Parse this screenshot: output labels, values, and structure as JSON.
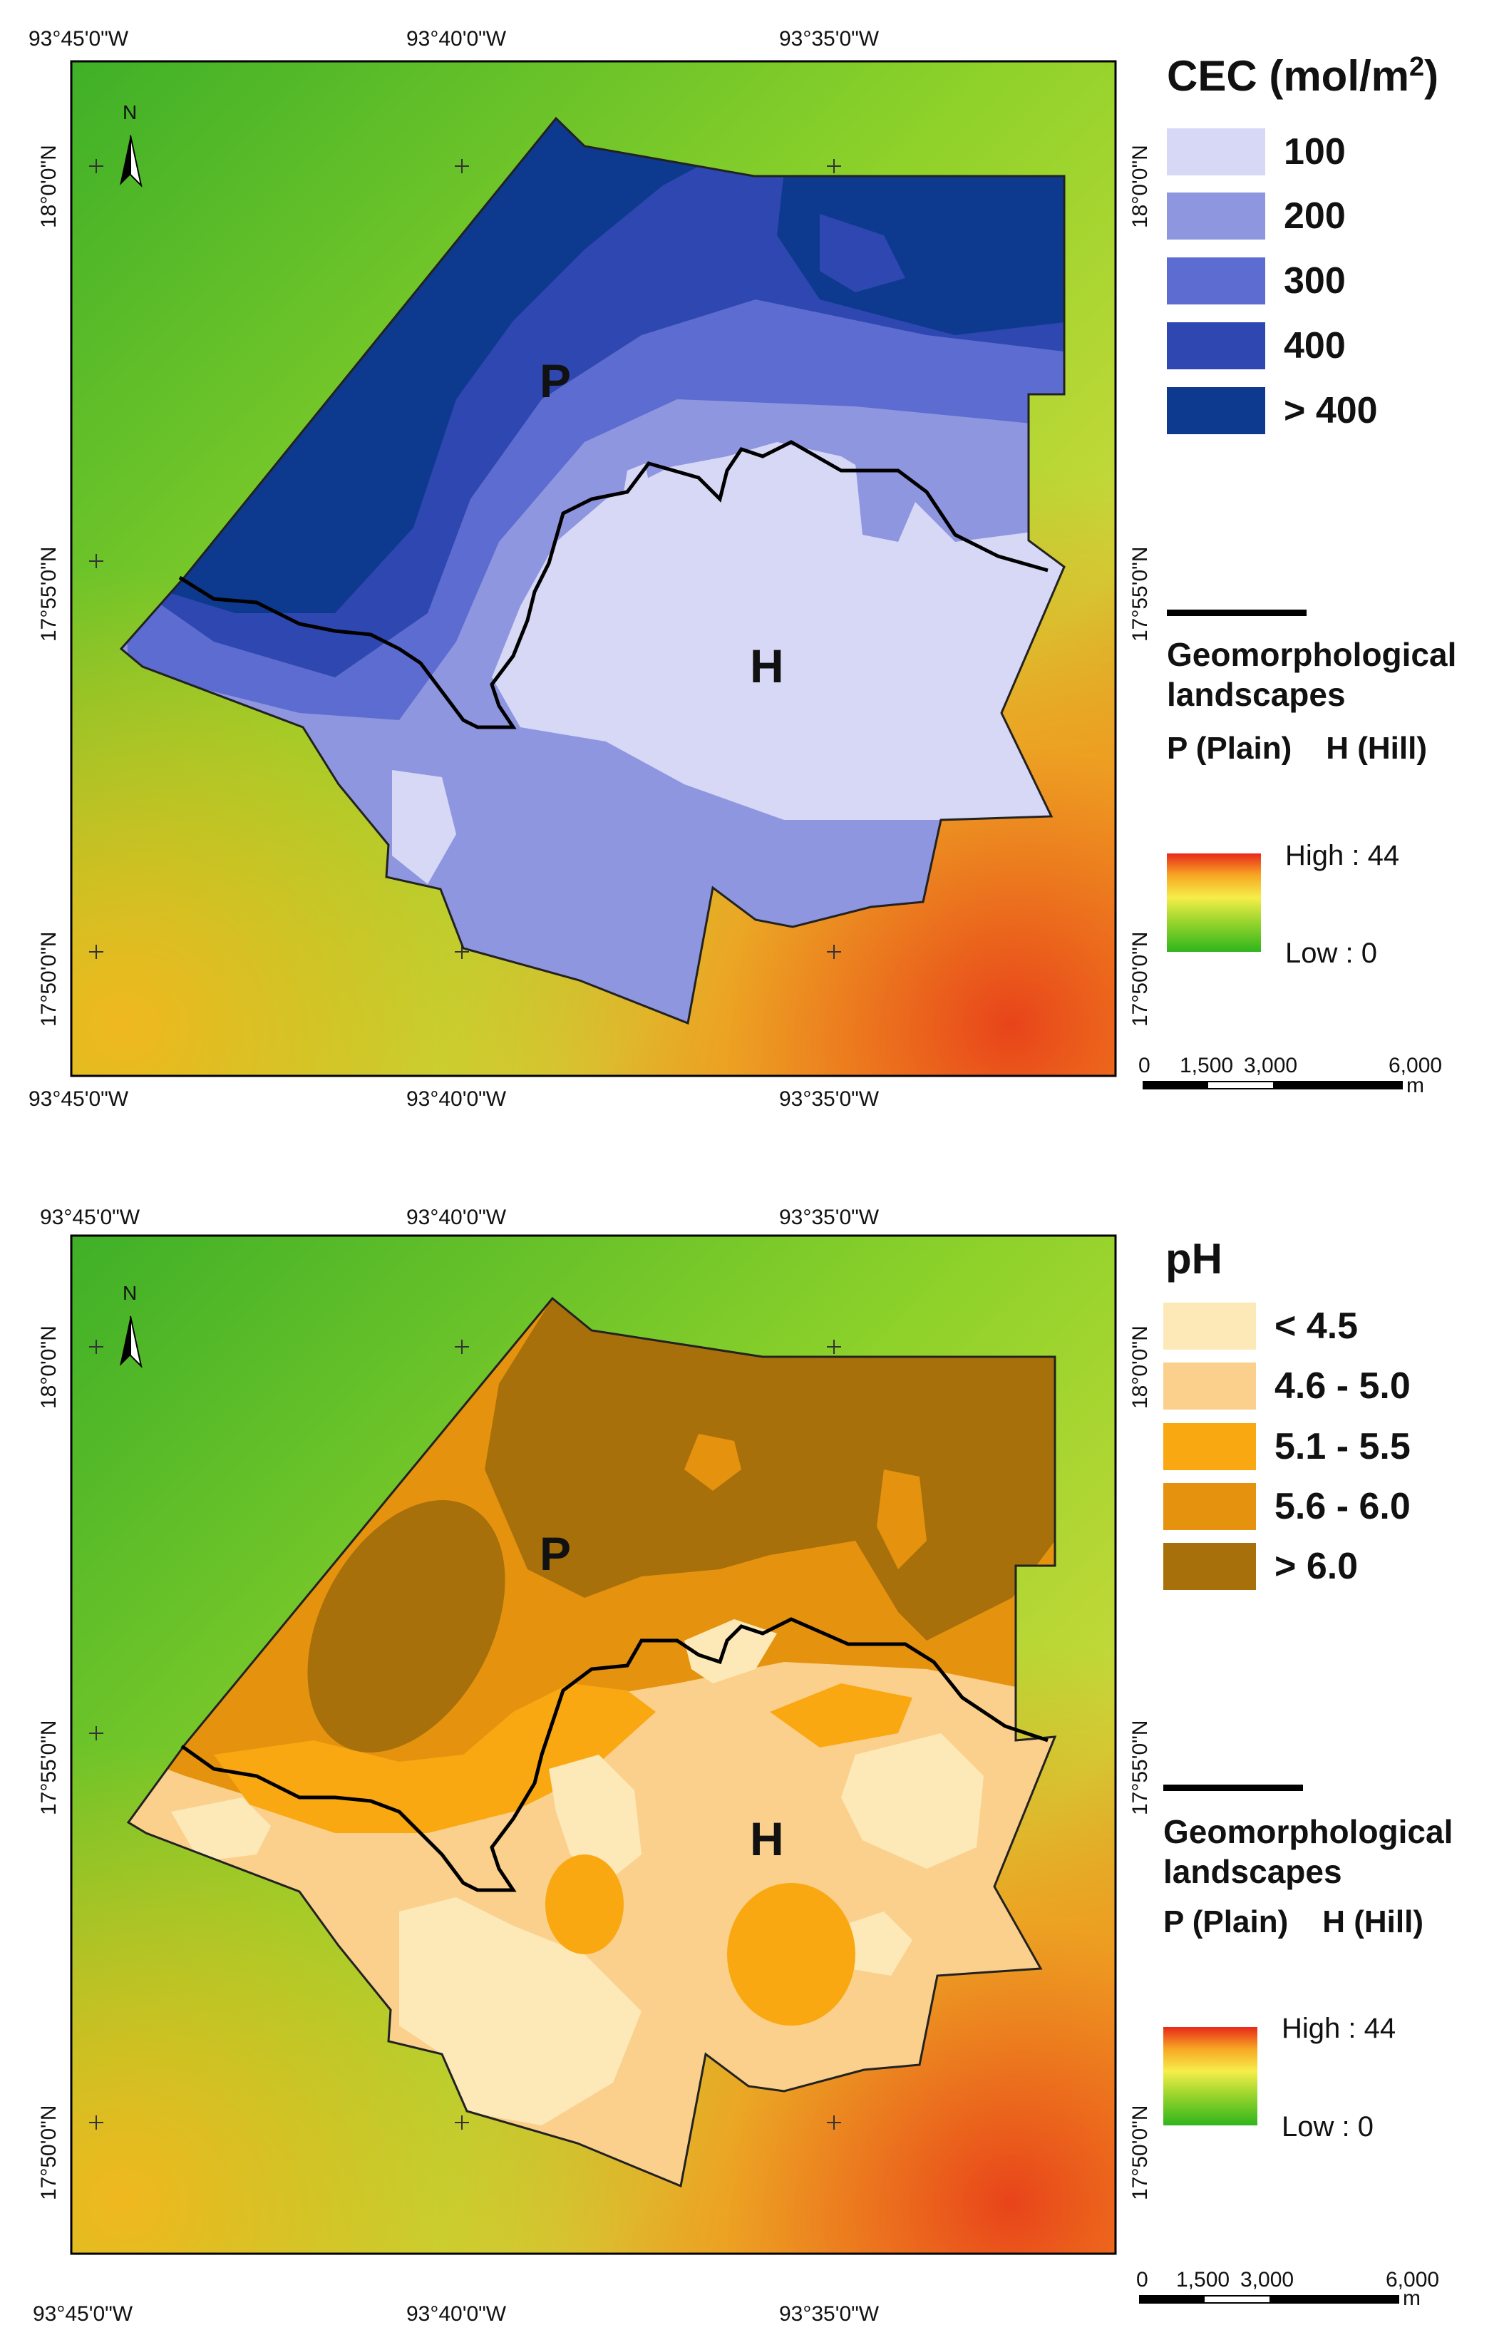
{
  "colors": {
    "cec_classes": [
      "#d6d8f5",
      "#8f96e0",
      "#5d6cd0",
      "#2f47b0",
      "#0d3a8e"
    ],
    "ph_classes": [
      "#fde9b8",
      "#fbd08c",
      "#f9a811",
      "#e5920f",
      "#a8700a"
    ],
    "boundary": "#000000",
    "dem_low": "#2fb51c",
    "dem_high": "#e8281a"
  },
  "panels": [
    {
      "id": "cec",
      "coords": {
        "top_lon": [
          "93°45'0\"W",
          "93°40'0\"W",
          "93°35'0\"W"
        ],
        "bottom_lon": [
          "93°45'0\"W",
          "93°40'0\"W",
          "93°35'0\"W"
        ],
        "left_lat": [
          "18°0'0\"N",
          "17°55'0\"N",
          "17°50'0\"N"
        ],
        "right_lat": [
          "18°0'0\"N",
          "17°55'0\"N",
          "17°50'0\"N"
        ]
      },
      "north_arrow": "N",
      "landscape_labels": {
        "plain": "P",
        "hill": "H"
      },
      "legend": {
        "title": "CEC (mol/m",
        "title_sup": "2",
        "title_end": ")",
        "classes": [
          "100",
          "200",
          "300",
          "400",
          "> 400"
        ]
      },
      "geo": {
        "title_line1": "Geomorphological",
        "title_line2": "landscapes",
        "plain": "P (Plain)",
        "hill": "H (Hill)"
      },
      "elevation": {
        "high": "High : 44",
        "low": "Low : 0"
      },
      "scale": {
        "ticks": [
          "0",
          "1,500",
          "3,000",
          "6,000"
        ],
        "unit": "m"
      }
    },
    {
      "id": "ph",
      "coords": {
        "top_lon": [
          "93°45'0\"W",
          "93°40'0\"W",
          "93°35'0\"W"
        ],
        "bottom_lon": [
          "93°45'0\"W",
          "93°40'0\"W",
          "93°35'0\"W"
        ],
        "left_lat": [
          "18°0'0\"N",
          "17°55'0\"N",
          "17°50'0\"N"
        ],
        "right_lat": [
          "18°0'0\"N",
          "17°55'0\"N",
          "17°50'0\"N"
        ]
      },
      "north_arrow": "N",
      "landscape_labels": {
        "plain": "P",
        "hill": "H"
      },
      "legend": {
        "title": "pH",
        "classes": [
          "< 4.5",
          "4.6 - 5.0",
          "5.1 - 5.5",
          "5.6 - 6.0",
          "> 6.0"
        ]
      },
      "geo": {
        "title_line1": "Geomorphological",
        "title_line2": "landscapes",
        "plain": "P (Plain)",
        "hill": "H (Hill)"
      },
      "elevation": {
        "high": "High : 44",
        "low": "Low : 0"
      },
      "scale": {
        "ticks": [
          "0",
          "1,500",
          "3,000",
          "6,000"
        ],
        "unit": "m"
      }
    }
  ]
}
